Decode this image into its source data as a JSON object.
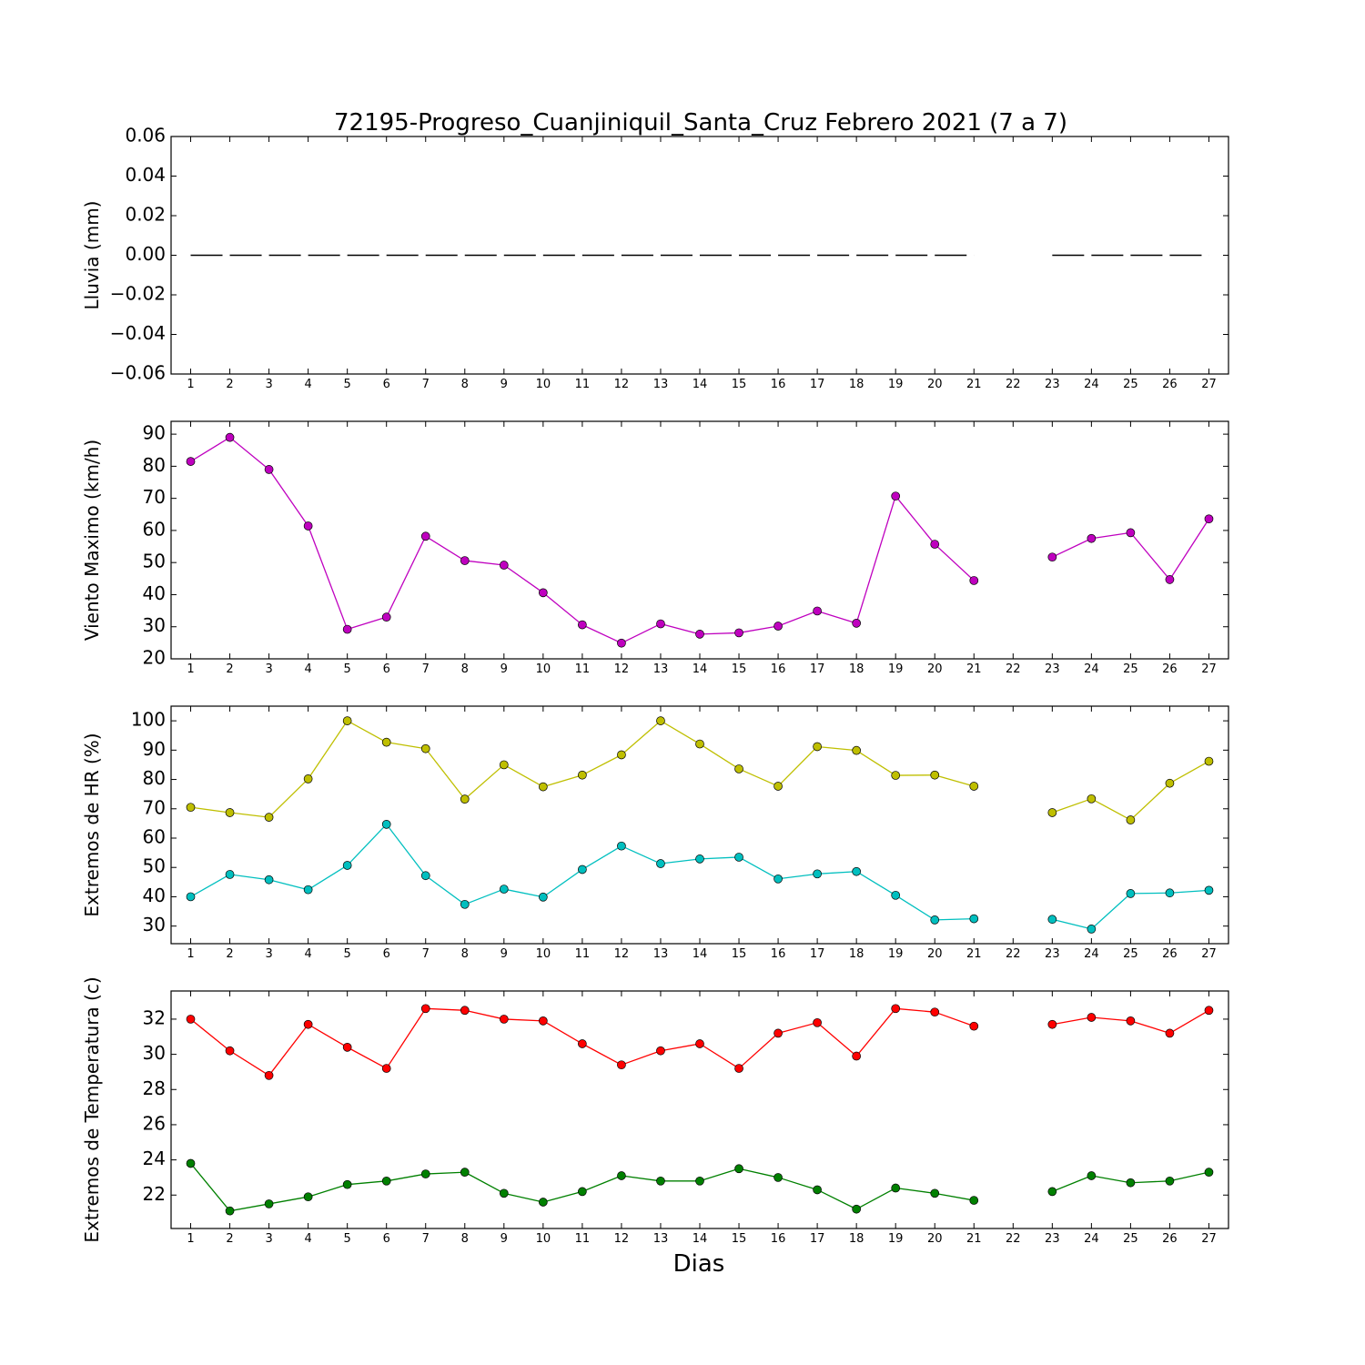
{
  "chart_data": {
    "title": "72195-Progreso_Cuanjiniquil_Santa_Cruz Febrero 2021  (7 a 7)",
    "xlabel": "Dias",
    "x": [
      1,
      2,
      3,
      4,
      5,
      6,
      7,
      8,
      9,
      10,
      11,
      12,
      13,
      14,
      15,
      16,
      17,
      18,
      19,
      20,
      21,
      22,
      23,
      24,
      25,
      26,
      27
    ],
    "subplots": [
      {
        "type": "line",
        "ylabel": "Lluvia (mm)",
        "ylim": [
          -0.06,
          0.06
        ],
        "yticks": [
          -0.06,
          -0.04,
          -0.02,
          0.0,
          0.02,
          0.04,
          0.06
        ],
        "ytick_labels": [
          "−0.06",
          "−0.04",
          "−0.02",
          "0.00",
          "0.02",
          "0.04",
          "0.06"
        ],
        "series": [
          {
            "style": "dashed",
            "color": "#000000",
            "values": [
              0,
              0,
              0,
              0,
              0,
              0,
              0,
              0,
              0,
              0,
              0,
              0,
              0,
              0,
              0,
              0,
              0,
              0,
              0,
              0,
              0,
              null,
              0,
              0,
              0,
              0,
              0
            ]
          }
        ]
      },
      {
        "type": "line",
        "ylabel": "Viento Maximo (km/h)",
        "ylim": [
          20,
          94
        ],
        "yticks": [
          20,
          30,
          40,
          50,
          60,
          70,
          80,
          90
        ],
        "ytick_labels": [
          "20",
          "30",
          "40",
          "50",
          "60",
          "70",
          "80",
          "90"
        ],
        "series": [
          {
            "color": "#bf00bf",
            "values": [
              81.5,
              89,
              79,
              61.4,
              29.2,
              33,
              58.2,
              50.6,
              49.2,
              40.6,
              30.6,
              24.9,
              30.9,
              27.7,
              28.1,
              30.2,
              34.9,
              31.1,
              70.7,
              55.7,
              44.4,
              null,
              51.7,
              57.5,
              59.3,
              44.7,
              63.6
            ]
          }
        ]
      },
      {
        "type": "line",
        "ylabel": "Extremos de HR (%)",
        "ylim": [
          24,
          105
        ],
        "yticks": [
          30,
          40,
          50,
          60,
          70,
          80,
          90,
          100
        ],
        "ytick_labels": [
          "30",
          "40",
          "50",
          "60",
          "70",
          "80",
          "90",
          "100"
        ],
        "series": [
          {
            "color": "#bfbf00",
            "values": [
              70.5,
              68.7,
              67.1,
              80.2,
              100,
              92.7,
              90.5,
              73.3,
              85,
              77.5,
              81.5,
              88.4,
              100,
              92.1,
              83.6,
              77.7,
              91.2,
              89.9,
              81.4,
              81.5,
              77.7,
              null,
              68.7,
              73.4,
              66.2,
              78.7,
              86.2
            ]
          },
          {
            "color": "#00bfbf",
            "values": [
              40,
              47.6,
              45.8,
              42.4,
              50.7,
              64.7,
              47.2,
              37.4,
              42.6,
              39.9,
              49.3,
              57.3,
              51.3,
              52.9,
              53.5,
              46.1,
              47.8,
              48.6,
              40.5,
              32.1,
              32.5,
              null,
              32.3,
              29,
              41.1,
              41.3,
              42.2
            ]
          }
        ]
      },
      {
        "type": "line",
        "ylabel": "Extremos de Temperatura (c)",
        "ylim": [
          20.1,
          33.6
        ],
        "yticks": [
          22,
          24,
          26,
          28,
          30,
          32
        ],
        "ytick_labels": [
          "22",
          "24",
          "26",
          "28",
          "30",
          "32"
        ],
        "series": [
          {
            "color": "#ff0000",
            "values": [
              32,
              30.2,
              28.8,
              31.7,
              30.4,
              29.2,
              32.6,
              32.5,
              32,
              31.9,
              30.6,
              29.4,
              30.2,
              30.6,
              29.2,
              31.2,
              31.8,
              29.9,
              32.6,
              32.4,
              31.6,
              null,
              31.7,
              32.1,
              31.9,
              31.2,
              32.5
            ]
          },
          {
            "color": "#008000",
            "values": [
              23.8,
              21.1,
              21.5,
              21.9,
              22.6,
              22.8,
              23.2,
              23.3,
              22.1,
              21.6,
              22.2,
              23.1,
              22.8,
              22.8,
              23.5,
              23,
              22.3,
              21.2,
              22.4,
              22.1,
              21.7,
              null,
              22.2,
              23.1,
              22.7,
              22.8,
              23.3
            ]
          }
        ]
      }
    ]
  }
}
